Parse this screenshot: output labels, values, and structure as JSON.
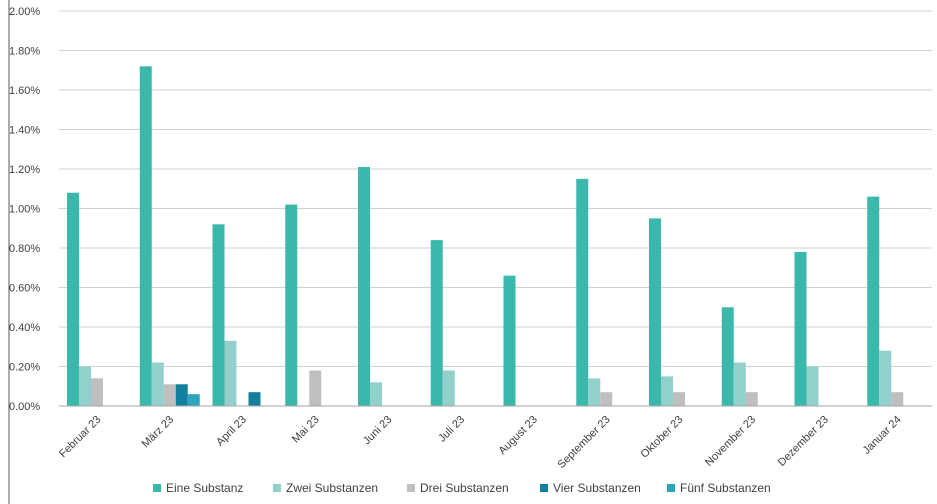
{
  "chart_data": {
    "type": "bar",
    "categories": [
      "Februar 23",
      "März 23",
      "April 23",
      "Mai 23",
      "Juni 23",
      "Juli 23",
      "August 23",
      "September 23",
      "Oktober 23",
      "November 23",
      "Dezember 23",
      "Januar 24"
    ],
    "series": [
      {
        "name": "Eine Substanz",
        "color": "#3bb8ac",
        "values": [
          1.08,
          1.72,
          0.92,
          1.02,
          1.21,
          0.84,
          0.66,
          1.15,
          0.95,
          0.5,
          0.78,
          1.06
        ]
      },
      {
        "name": "Zwei Substanzen",
        "color": "#92d0cb",
        "values": [
          0.2,
          0.22,
          0.33,
          0,
          0.12,
          0.18,
          0,
          0.14,
          0.15,
          0.22,
          0.2,
          0.28
        ]
      },
      {
        "name": "Drei Substanzen",
        "color": "#bfbfbf",
        "values": [
          0.14,
          0.11,
          0,
          0.18,
          0,
          0,
          0,
          0.07,
          0.07,
          0.07,
          0,
          0.07
        ]
      },
      {
        "name": "Vier Substanzen",
        "color": "#127f9c",
        "values": [
          0,
          0.11,
          0.07,
          0,
          0,
          0,
          0,
          0,
          0,
          0,
          0,
          0
        ]
      },
      {
        "name": "Fünf Substanzen",
        "color": "#2ba6bd",
        "values": [
          0,
          0.06,
          0,
          0,
          0,
          0,
          0,
          0,
          0,
          0,
          0,
          0
        ]
      }
    ],
    "y_ticks": [
      "0.00%",
      "0.20%",
      "0.40%",
      "0.60%",
      "0.80%",
      "1.00%",
      "1.20%",
      "1.40%",
      "1.60%",
      "1.80%",
      "2.00%"
    ],
    "ylim": [
      0,
      2.0
    ],
    "grid": true,
    "legend_position": "bottom",
    "title": "",
    "xlabel": "",
    "ylabel": ""
  }
}
